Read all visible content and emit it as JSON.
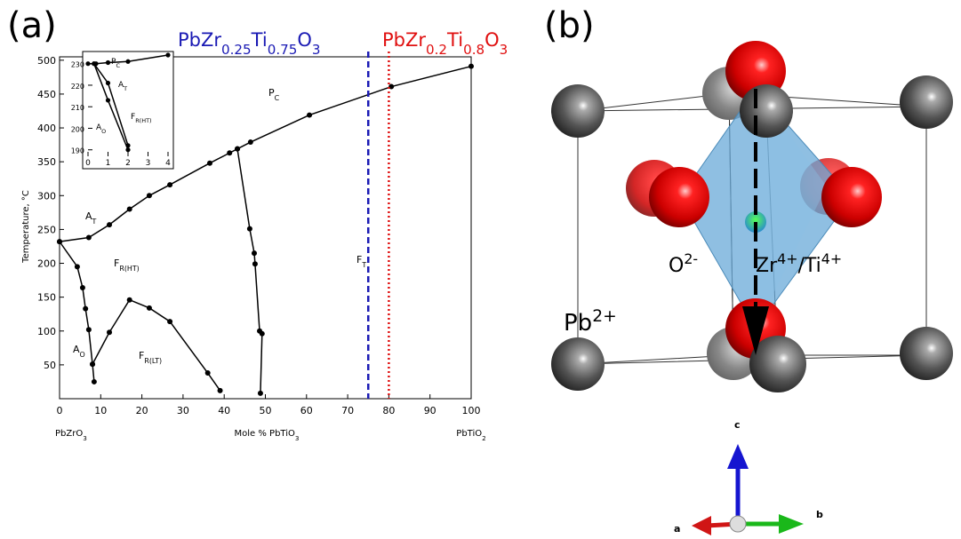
{
  "chart_data": [
    {
      "type": "line",
      "color": "#000000",
      "xlim": [
        0,
        100
      ],
      "ylim": [
        0,
        505
      ],
      "xticks": [
        0,
        10,
        20,
        30,
        40,
        50,
        60,
        70,
        80,
        90,
        100
      ],
      "yticks": [
        50,
        100,
        150,
        200,
        250,
        300,
        350,
        400,
        450,
        500
      ],
      "ylabel": "Temperature, °C",
      "xlabels": [
        [
          "PbZrO",
          "3"
        ],
        [
          "Mole % PbTiO",
          "3"
        ],
        [
          "PbTiO",
          "2"
        ]
      ],
      "series": [
        {
          "x": [
            0,
            7.1,
            12.1,
            17,
            21.8,
            26.8,
            36.5,
            41.3,
            43.2,
            46.4,
            60.7,
            80.6,
            100
          ],
          "values": [
            232,
            238,
            257,
            280,
            300,
            316,
            348,
            363,
            369,
            379,
            419,
            461,
            491
          ]
        },
        {
          "x": [
            0,
            4.3,
            5.6,
            6.3,
            7.1,
            8,
            8.4
          ],
          "values": [
            232,
            195,
            164,
            133,
            102,
            51,
            25
          ]
        },
        {
          "x": [
            8,
            12.1,
            17,
            21.8,
            26.8,
            36,
            39
          ],
          "values": [
            51,
            98,
            146,
            134,
            114,
            38,
            12
          ]
        },
        {
          "x": [
            43.2,
            46.2,
            47.3,
            47.5,
            48.6,
            49.2,
            48.8
          ],
          "values": [
            369,
            251,
            215,
            199,
            100,
            96,
            8
          ]
        }
      ],
      "annotations": [
        [
          "P",
          "C"
        ],
        [
          "A",
          "T"
        ],
        [
          "F",
          "R(HT)"
        ],
        [
          "A",
          "O"
        ],
        [
          "F",
          "R(LT)"
        ],
        [
          "F",
          "T"
        ]
      ],
      "markers": [
        {
          "x": 75,
          "color": "#1a1ab4",
          "label": [
            "PbZr",
            "0.25",
            "Ti",
            "0.75",
            "O",
            "3"
          ]
        },
        {
          "x": 80,
          "color": "#e01010",
          "label": [
            "PbZr",
            "0.2",
            "Ti",
            "0.8",
            "O",
            "3"
          ]
        }
      ]
    },
    {
      "type": "line",
      "color": "#000000",
      "xlim": [
        0,
        4
      ],
      "ylim": [
        187,
        234
      ],
      "xticks": [
        0,
        1,
        2,
        3,
        4
      ],
      "yticks": [
        190,
        200,
        210,
        220,
        230
      ],
      "series": [
        {
          "x": [
            0,
            0.4,
            1,
            2,
            4
          ],
          "values": [
            230,
            230,
            230.5,
            231,
            234
          ]
        },
        {
          "x": [
            0.3,
            1,
            2
          ],
          "values": [
            230,
            221,
            192
          ]
        },
        {
          "x": [
            0.3,
            1,
            2
          ],
          "values": [
            230,
            213,
            190
          ]
        }
      ],
      "annotations": [
        [
          "P",
          "C"
        ],
        [
          "A",
          "T"
        ],
        [
          "F",
          "R(HT)"
        ],
        [
          "A",
          "O"
        ]
      ]
    }
  ],
  "panels": [
    "(a)",
    "(b)"
  ],
  "structure": {
    "ions": [
      [
        "O",
        "2-"
      ],
      [
        "Zr",
        "4+",
        "/Ti",
        "4+"
      ],
      [
        "Pb",
        "2+"
      ]
    ],
    "axes": [
      "a",
      "b",
      "c"
    ]
  }
}
